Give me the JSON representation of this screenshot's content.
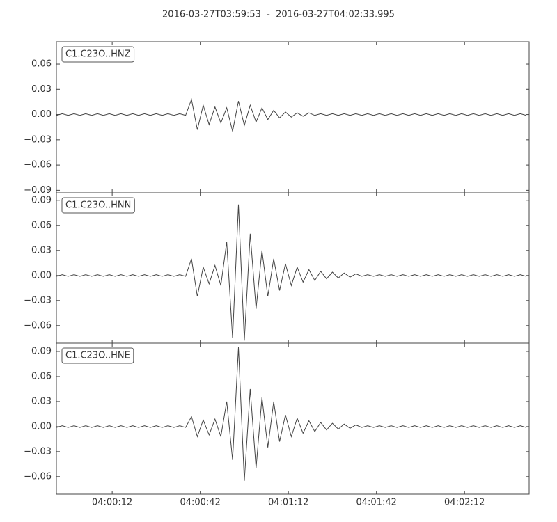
{
  "chart_data": {
    "type": "line",
    "title": "2016-03-27T03:59:53  -  2016-03-27T04:02:33.995",
    "xlim": [
      "03:59:53",
      "04:02:33.995"
    ],
    "xticks": [
      "04:00:12",
      "04:00:42",
      "04:01:12",
      "04:01:42",
      "04:02:12"
    ],
    "x": [
      "03:59:53",
      "03:59:55",
      "03:59:57",
      "03:59:59",
      "04:00:01",
      "04:00:03",
      "04:00:05",
      "04:00:07",
      "04:00:09",
      "04:00:11",
      "04:00:13",
      "04:00:15",
      "04:00:17",
      "04:00:19",
      "04:00:21",
      "04:00:23",
      "04:00:25",
      "04:00:27",
      "04:00:29",
      "04:00:31",
      "04:00:33",
      "04:00:35",
      "04:00:37",
      "04:00:39",
      "04:00:41",
      "04:00:43",
      "04:00:45",
      "04:00:47",
      "04:00:49",
      "04:00:51",
      "04:00:53",
      "04:00:55",
      "04:00:57",
      "04:00:59",
      "04:01:01",
      "04:01:03",
      "04:01:05",
      "04:01:07",
      "04:01:09",
      "04:01:11",
      "04:01:13",
      "04:01:15",
      "04:01:17",
      "04:01:19",
      "04:01:21",
      "04:01:23",
      "04:01:25",
      "04:01:27",
      "04:01:29",
      "04:01:31",
      "04:01:33",
      "04:01:35",
      "04:01:37",
      "04:01:39",
      "04:01:41",
      "04:01:43",
      "04:01:45",
      "04:01:47",
      "04:01:49",
      "04:01:51",
      "04:01:53",
      "04:01:55",
      "04:01:57",
      "04:01:59",
      "04:02:01",
      "04:02:03",
      "04:02:05",
      "04:02:07",
      "04:02:09",
      "04:02:11",
      "04:02:13",
      "04:02:15",
      "04:02:17",
      "04:02:19",
      "04:02:21",
      "04:02:23",
      "04:02:25",
      "04:02:27",
      "04:02:29",
      "04:02:31",
      "04:02:33"
    ],
    "series": [
      {
        "name": "C1.C23O..HNZ",
        "color": "#444444",
        "ylim": [
          -0.093,
          0.0865
        ],
        "yticks": [
          0.06,
          0.03,
          {
            "value": 0,
            "label": "0.00"
          },
          {
            "value": -0.03,
            "label": "−0.03"
          },
          {
            "value": -0.06,
            "label": "−0.06"
          },
          {
            "value": -0.09,
            "label": "−0.09"
          }
        ],
        "values": [
          -0.001,
          0.001,
          -0.001,
          0.001,
          -0.001,
          0.001,
          -0.001,
          0.001,
          -0.001,
          0.001,
          -0.001,
          0.001,
          -0.001,
          0.001,
          -0.001,
          0.001,
          -0.001,
          0.001,
          -0.001,
          0.001,
          -0.001,
          0.001,
          -0.001,
          0.018,
          -0.018,
          0.011,
          -0.012,
          0.009,
          -0.01,
          0.008,
          -0.02,
          0.016,
          -0.013,
          0.011,
          -0.009,
          0.008,
          -0.006,
          0.005,
          -0.004,
          0.003,
          -0.003,
          0.002,
          -0.002,
          0.002,
          -0.001,
          0.001,
          -0.001,
          0.001,
          -0.001,
          0.001,
          -0.001,
          0.001,
          -0.001,
          0.001,
          -0.001,
          0.001,
          -0.001,
          0.001,
          -0.001,
          0.001,
          -0.001,
          0.001,
          -0.001,
          0.001,
          -0.001,
          0.001,
          -0.001,
          0.001,
          -0.001,
          0.001,
          -0.001,
          0.001,
          -0.001,
          0.001,
          -0.001,
          0.001,
          -0.001,
          0.001,
          -0.001,
          0.001,
          -0.001
        ]
      },
      {
        "name": "C1.C23O..HNN",
        "color": "#444444",
        "ylim": [
          -0.081,
          0.099
        ],
        "yticks": [
          0.09,
          0.06,
          0.03,
          {
            "value": 0,
            "label": "0.00"
          },
          {
            "value": -0.03,
            "label": "−0.03"
          },
          {
            "value": -0.06,
            "label": "−0.06"
          }
        ],
        "values": [
          -0.001,
          0.001,
          -0.001,
          0.001,
          -0.001,
          0.001,
          -0.001,
          0.001,
          -0.001,
          0.001,
          -0.001,
          0.001,
          -0.001,
          0.001,
          -0.001,
          0.001,
          -0.001,
          0.001,
          -0.001,
          0.001,
          -0.001,
          0.001,
          -0.001,
          0.02,
          -0.025,
          0.01,
          -0.01,
          0.012,
          -0.012,
          0.04,
          -0.075,
          0.085,
          -0.078,
          0.05,
          -0.04,
          0.03,
          -0.025,
          0.02,
          -0.018,
          0.014,
          -0.012,
          0.01,
          -0.008,
          0.007,
          -0.006,
          0.005,
          -0.004,
          0.004,
          -0.003,
          0.003,
          -0.002,
          0.002,
          -0.001,
          0.001,
          -0.001,
          0.001,
          -0.001,
          0.001,
          -0.001,
          0.001,
          -0.001,
          0.001,
          -0.001,
          0.001,
          -0.001,
          0.001,
          -0.001,
          0.001,
          -0.001,
          0.001,
          -0.001,
          0.001,
          -0.001,
          0.001,
          -0.001,
          0.001,
          -0.001,
          0.001,
          -0.001,
          0.001,
          -0.001
        ]
      },
      {
        "name": "C1.C23O..HNE",
        "color": "#444444",
        "ylim": [
          -0.081,
          0.1
        ],
        "yticks": [
          0.09,
          0.06,
          0.03,
          {
            "value": 0,
            "label": "0.00"
          },
          {
            "value": -0.03,
            "label": "−0.03"
          },
          {
            "value": -0.06,
            "label": "−0.06"
          }
        ],
        "values": [
          -0.001,
          0.001,
          -0.001,
          0.001,
          -0.001,
          0.001,
          -0.001,
          0.001,
          -0.001,
          0.001,
          -0.001,
          0.001,
          -0.001,
          0.001,
          -0.001,
          0.001,
          -0.001,
          0.001,
          -0.001,
          0.001,
          -0.001,
          0.001,
          -0.001,
          0.012,
          -0.012,
          0.008,
          -0.01,
          0.009,
          -0.012,
          0.03,
          -0.04,
          0.095,
          -0.065,
          0.045,
          -0.05,
          0.035,
          -0.025,
          0.03,
          -0.018,
          0.014,
          -0.012,
          0.01,
          -0.008,
          0.007,
          -0.006,
          0.005,
          -0.004,
          0.004,
          -0.003,
          0.003,
          -0.002,
          0.002,
          -0.001,
          0.001,
          -0.001,
          0.001,
          -0.001,
          0.001,
          -0.001,
          0.001,
          -0.001,
          0.001,
          -0.001,
          0.001,
          -0.001,
          0.001,
          -0.001,
          0.001,
          -0.001,
          0.001,
          -0.001,
          0.001,
          -0.001,
          0.001,
          -0.001,
          0.001,
          -0.001,
          0.001,
          -0.001,
          0.001,
          -0.001
        ]
      }
    ]
  }
}
